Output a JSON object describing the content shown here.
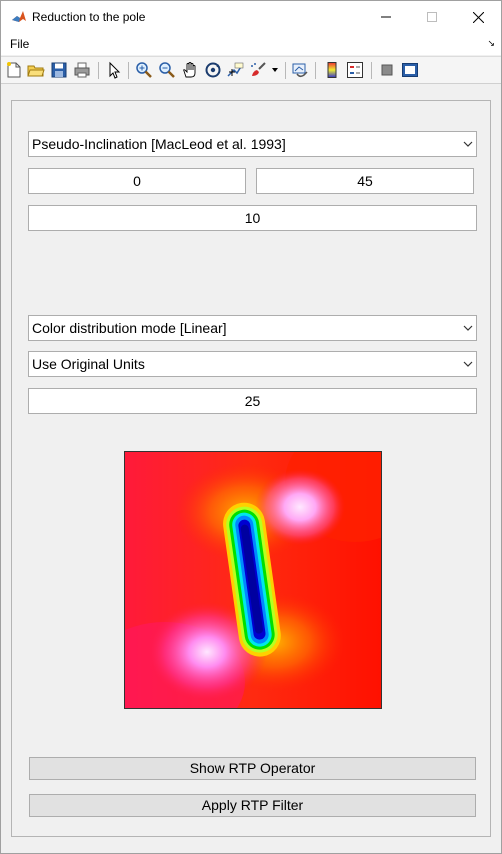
{
  "window": {
    "title": "Reduction to the pole"
  },
  "menubar": {
    "file_label": "File"
  },
  "toolbar": {
    "icons": [
      "new-file-icon",
      "open-file-icon",
      "save-icon",
      "print-icon",
      "pointer-icon",
      "zoom-in-icon",
      "zoom-out-icon",
      "pan-hand-icon",
      "rotate-3d-icon",
      "data-cursor-icon",
      "brush-icon",
      "link-plot-icon",
      "colorbar-icon",
      "legend-icon",
      "hide-plot-tools-icon",
      "show-plot-tools-icon"
    ]
  },
  "controls": {
    "method_select": "Pseudo-Inclination [MacLeod et al. 1993]",
    "inclination_value": "0",
    "declination_value": "45",
    "third_value": "10",
    "color_mode_select": "Color distribution mode [Linear]",
    "units_select": "Use Original Units",
    "levels_value": "25"
  },
  "buttons": {
    "show_rtp_operator": "Show RTP Operator",
    "apply_rtp_filter": "Apply RTP Filter"
  },
  "colors": {
    "anomaly_background": "#ff1a00",
    "anomaly_low": "#0000c8",
    "anomaly_high": "#ffffff",
    "panel_background": "#f0f0f0"
  }
}
